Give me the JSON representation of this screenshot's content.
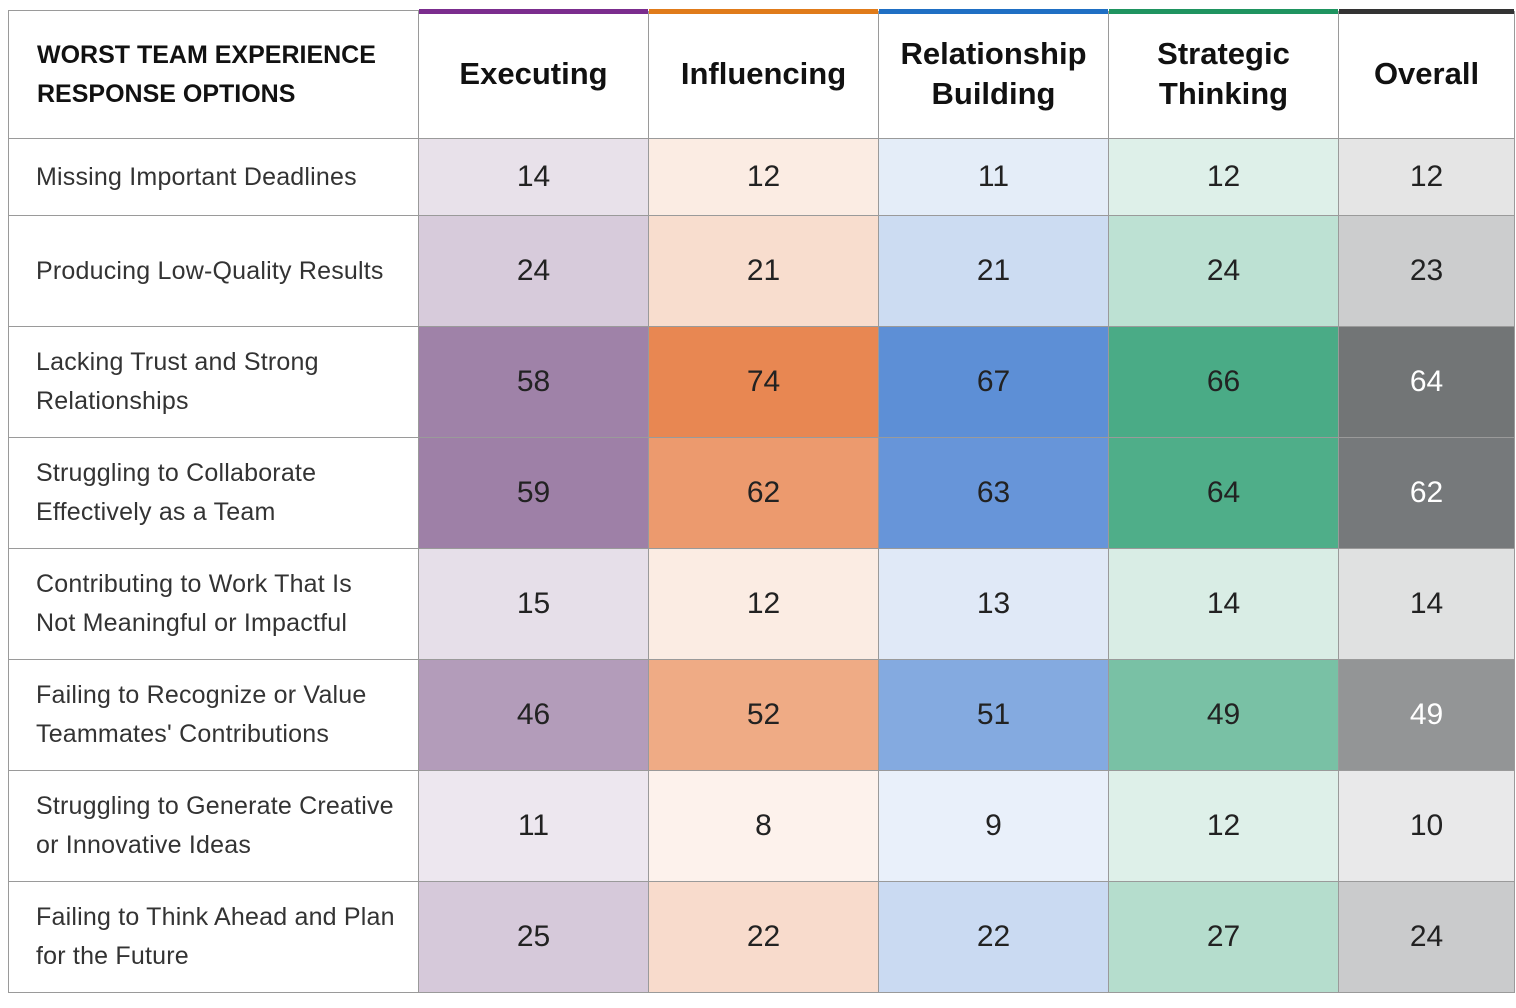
{
  "table": {
    "header": "WORST TEAM EXPERIENCE RESPONSE OPTIONS",
    "columns": [
      {
        "name": "Executing",
        "accent": "#7b2d8e",
        "color": "#856090"
      },
      {
        "name": "Influencing",
        "accent": "#e07b1a",
        "color": "#e88752"
      },
      {
        "name": "Relationship Building",
        "accent": "#1f6fc4",
        "color": "#4c83d2"
      },
      {
        "name": "Strategic Thinking",
        "accent": "#1f9460",
        "color": "#34a177"
      },
      {
        "name": "Overall",
        "accent": "#333333",
        "color": "#5c5f61"
      }
    ],
    "rows": [
      {
        "label": "Missing Important Deadlines",
        "values": [
          14,
          12,
          11,
          12,
          12
        ]
      },
      {
        "label": "Producing Low-Quality Results",
        "values": [
          24,
          21,
          21,
          24,
          23
        ]
      },
      {
        "label": "Lacking Trust and Strong Relationships",
        "values": [
          58,
          74,
          67,
          66,
          64
        ]
      },
      {
        "label": "Struggling to Collaborate Effectively as a Team",
        "values": [
          59,
          62,
          63,
          64,
          62
        ]
      },
      {
        "label": "Contributing to Work That Is Not Meaningful or Impactful",
        "values": [
          15,
          12,
          13,
          14,
          14
        ]
      },
      {
        "label": "Failing to Recognize or Value Teammates' Contributions",
        "values": [
          46,
          52,
          51,
          49,
          49
        ]
      },
      {
        "label": "Struggling to Generate Creative or Innovative Ideas",
        "values": [
          11,
          8,
          9,
          12,
          10
        ]
      },
      {
        "label": "Failing to Think Ahead and Plan for the Future",
        "values": [
          25,
          22,
          22,
          27,
          24
        ]
      }
    ]
  }
}
